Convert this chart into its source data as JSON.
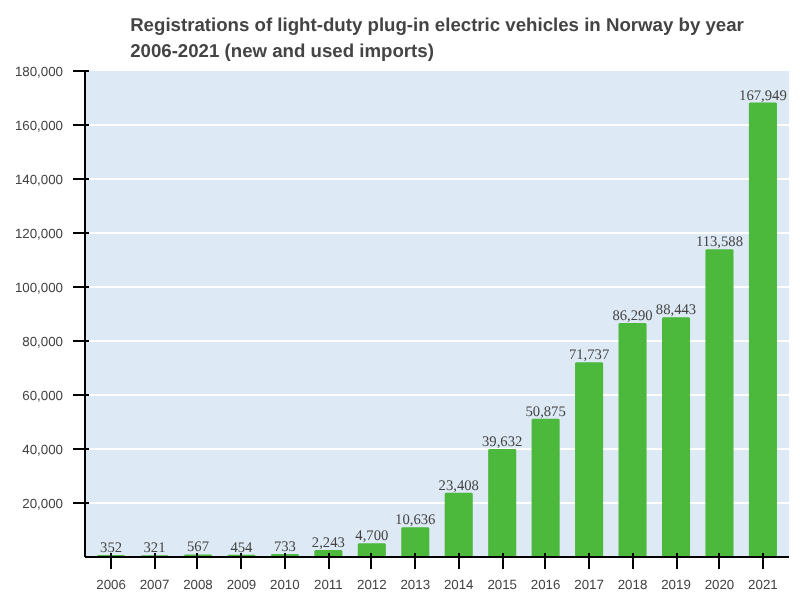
{
  "chart_data": {
    "type": "bar",
    "title": "Registrations of light-duty plug-in electric vehicles in Norway by year\n2006-2021 (new and used imports)",
    "categories": [
      "2006",
      "2007",
      "2008",
      "2009",
      "2010",
      "2011",
      "2012",
      "2013",
      "2014",
      "2015",
      "2016",
      "2017",
      "2018",
      "2019",
      "2020",
      "2021"
    ],
    "values": [
      352,
      321,
      567,
      454,
      733,
      2243,
      4700,
      10636,
      23408,
      39632,
      50875,
      71737,
      86290,
      88443,
      113588,
      167949
    ],
    "value_labels": [
      "352",
      "321",
      "567",
      "454",
      "733",
      "2,243",
      "4,700",
      "10,636",
      "23,408",
      "39,632",
      "50,875",
      "71,737",
      "86,290",
      "88,443",
      "113,588",
      "167,949"
    ],
    "color": "#4cb83c",
    "ylim": [
      0,
      180000
    ],
    "yticks": [
      {
        "value": 20000,
        "label": "20,000"
      },
      {
        "value": 40000,
        "label": "40,000"
      },
      {
        "value": 60000,
        "label": "60,000"
      },
      {
        "value": 80000,
        "label": "80,000"
      },
      {
        "value": 100000,
        "label": "100,000"
      },
      {
        "value": 120000,
        "label": "120,000"
      },
      {
        "value": 140000,
        "label": "140,000"
      },
      {
        "value": 160000,
        "label": "160,000"
      },
      {
        "value": 180000,
        "label": "180,000"
      }
    ],
    "grid": "y"
  }
}
